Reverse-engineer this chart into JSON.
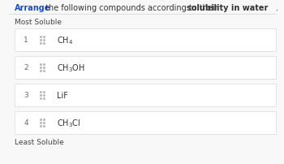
{
  "title_arrange": "Arrange",
  "title_rest": " the following compounds according to their ",
  "title_bold": "solubility in water",
  "title_end": ".",
  "most_soluble": "Most Soluble",
  "least_soluble": "Least Soluble",
  "rows": [
    {
      "num": "1",
      "compound": "CH$_4$"
    },
    {
      "num": "2",
      "compound": "CH$_3$OH"
    },
    {
      "num": "3",
      "compound": "LiF"
    },
    {
      "num": "4",
      "compound": "CH$_3$Cl"
    }
  ],
  "bg_color": "#f8f8f8",
  "row_bg": "#ffffff",
  "row_border": "#e0e0e0",
  "num_color": "#666666",
  "compound_color": "#333333",
  "title_color_arrange": "#1a4fcc",
  "title_color_rest": "#333333",
  "drag_icon_color": "#bbbbbb",
  "header_line_color": "#dddddd",
  "label_color": "#444444"
}
